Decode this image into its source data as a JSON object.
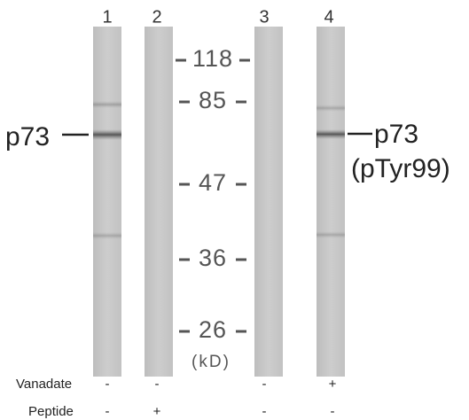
{
  "lanes": [
    "1",
    "2",
    "3",
    "4"
  ],
  "markers": {
    "values": [
      "118",
      "85",
      "47",
      "36",
      "26"
    ],
    "unit": "(kD)"
  },
  "band_labels": {
    "left": "p73",
    "right": "p73",
    "right_sub": "(pTyr99)"
  },
  "conditions": [
    {
      "label": "Vanadate",
      "values": [
        "-",
        "-",
        "-",
        "+"
      ]
    },
    {
      "label": "Peptide",
      "values": [
        "-",
        "+",
        "-",
        "-"
      ]
    }
  ]
}
